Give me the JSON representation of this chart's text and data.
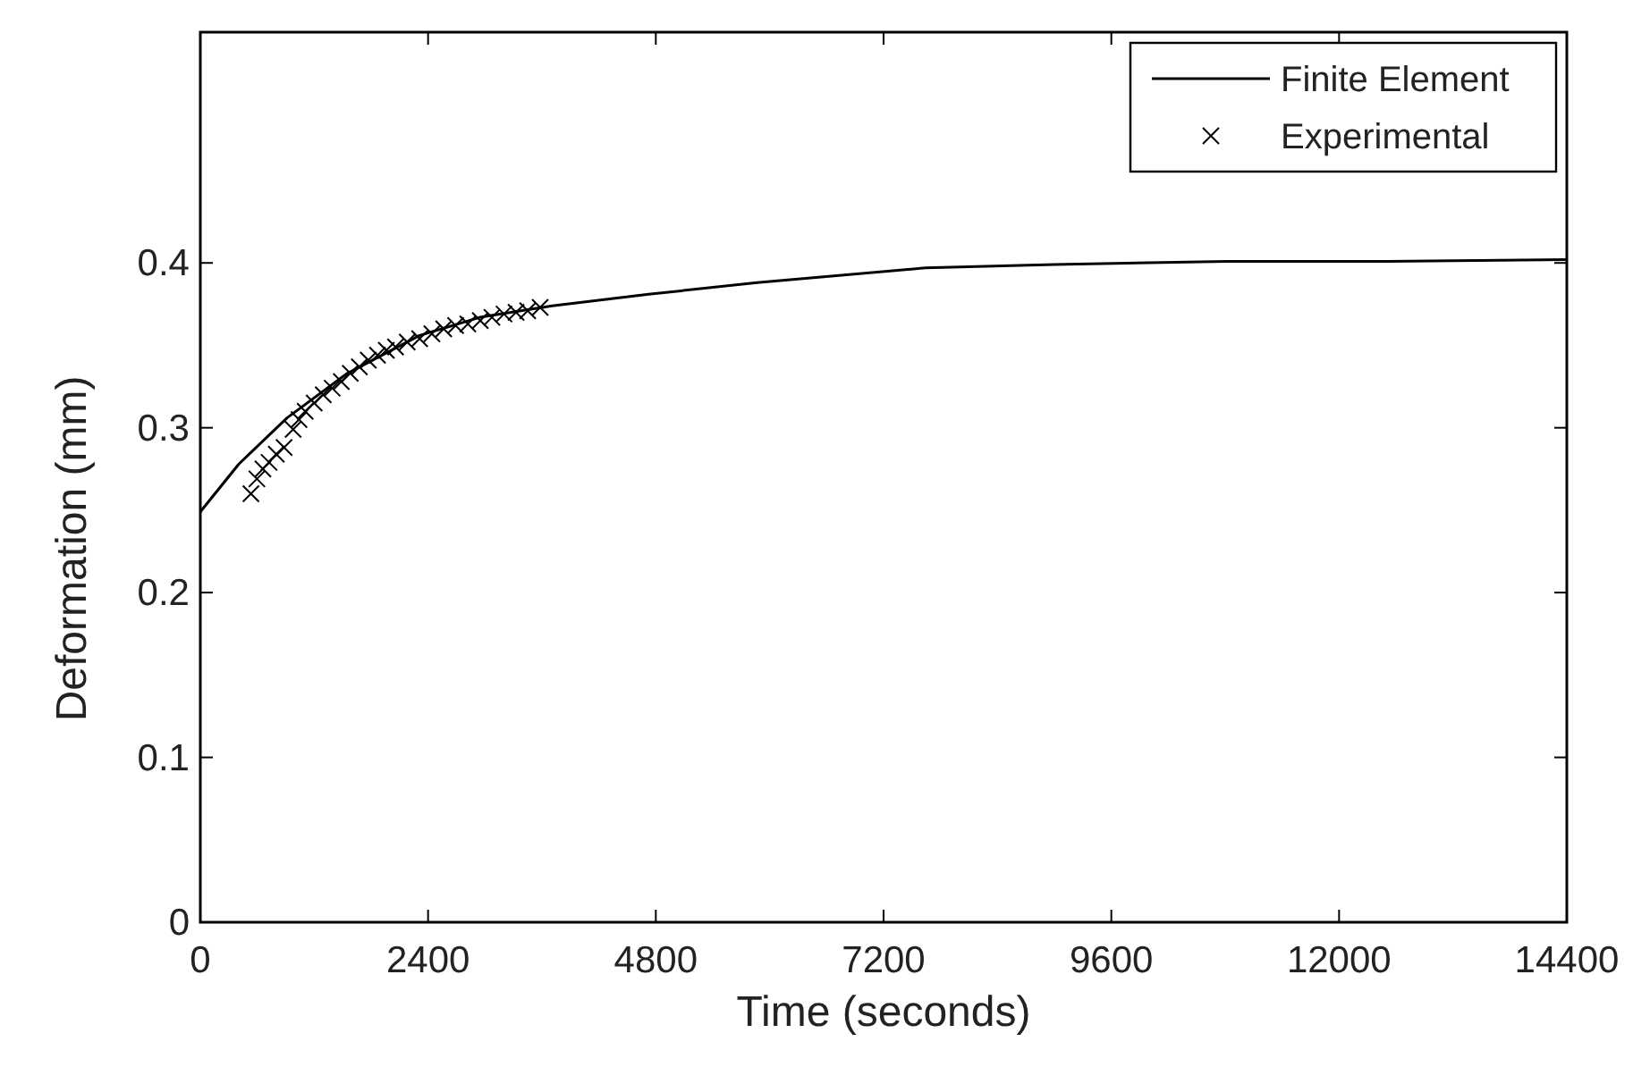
{
  "chart_data": {
    "type": "line",
    "xlabel": "Time (seconds)",
    "ylabel": "Deformation (mm)",
    "xlim": [
      0,
      14400
    ],
    "xticks": [
      0,
      2400,
      4800,
      7200,
      9600,
      12000,
      14400
    ],
    "ylim": [
      0,
      0.54
    ],
    "yticks": [
      0,
      0.1,
      0.2,
      0.3,
      0.4
    ],
    "grid": false,
    "legend": "top right",
    "series": [
      {
        "name": "Finite Element",
        "color": "#000000",
        "marker": "none",
        "line_style": "solid",
        "x": [
          0,
          406,
          914,
          1549,
          2311,
          2946,
          3708,
          4724,
          5867,
          7638,
          9000,
          10819,
          12500,
          14400
        ],
        "values": [
          0.249,
          0.278,
          0.306,
          0.333,
          0.356,
          0.367,
          0.374,
          0.381,
          0.388,
          0.397,
          0.399,
          0.401,
          0.401,
          0.402
        ]
      },
      {
        "name": "Experimental",
        "type": "scatter",
        "color": "#000000",
        "marker": "cross",
        "x": [
          533,
          596,
          660,
          724,
          800,
          883,
          978,
          1040,
          1105,
          1200,
          1295,
          1390,
          1486,
          1580,
          1676,
          1770,
          1867,
          1960,
          2057,
          2180,
          2311,
          2440,
          2565,
          2690,
          2819,
          2950,
          3073,
          3200,
          3327,
          3450,
          3581
        ],
        "values": [
          0.26,
          0.269,
          0.275,
          0.279,
          0.284,
          0.288,
          0.299,
          0.305,
          0.31,
          0.315,
          0.32,
          0.324,
          0.328,
          0.333,
          0.337,
          0.341,
          0.344,
          0.347,
          0.349,
          0.352,
          0.354,
          0.357,
          0.36,
          0.362,
          0.363,
          0.365,
          0.367,
          0.369,
          0.37,
          0.371,
          0.373
        ]
      }
    ]
  }
}
